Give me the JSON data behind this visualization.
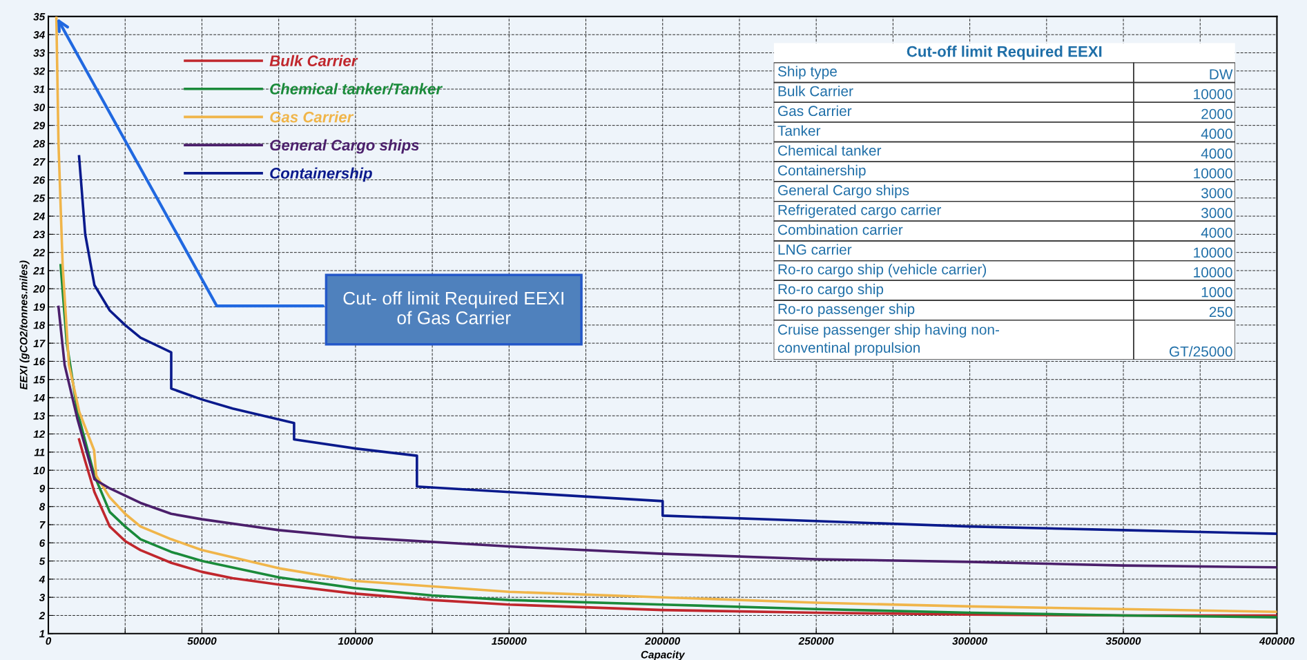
{
  "chart_data": [
    {
      "type": "line",
      "xlabel": "Capacity",
      "ylabel": "EEXI (gCO2/tonnes.miles)",
      "xlim": [
        0,
        400000
      ],
      "ylim": [
        1,
        35
      ],
      "xticks": [
        0,
        {
          "value": 25000,
          "label": null
        },
        50000,
        {
          "value": 75000,
          "label": null
        },
        100000,
        {
          "value": 125000,
          "label": null
        },
        150000,
        {
          "value": 175000,
          "label": null
        },
        200000,
        {
          "value": 225000,
          "label": null
        },
        250000,
        {
          "value": 275000,
          "label": null
        },
        300000,
        {
          "value": 325000,
          "label": null
        },
        350000,
        {
          "value": 375000,
          "label": null
        },
        400000
      ],
      "yticks": [
        1,
        2,
        3,
        4,
        5,
        6,
        7,
        8,
        9,
        10,
        11,
        12,
        13,
        14,
        15,
        16,
        17,
        18,
        19,
        20,
        21,
        22,
        23,
        24,
        25,
        26,
        27,
        28,
        29,
        30,
        31,
        32,
        33,
        34,
        35
      ],
      "grid": true,
      "legend": "top left",
      "line_style": "solid",
      "marker": "none",
      "series": [
        {
          "name": "Bulk Carrier",
          "color": "#c0272d",
          "x": [
            10000,
            12000,
            15000,
            20000,
            25000,
            30000,
            40000,
            50000,
            60000,
            75000,
            100000,
            125000,
            150000,
            200000,
            250000,
            300000,
            350000,
            400000
          ],
          "values": [
            11.7,
            10.5,
            8.8,
            6.9,
            6.1,
            5.6,
            4.9,
            4.4,
            4.05,
            3.7,
            3.2,
            2.85,
            2.6,
            2.3,
            2.15,
            2.05,
            2.0,
            2.0
          ]
        },
        {
          "name": "Chemical tanker/Tanker",
          "color": "#1a8a3a",
          "x": [
            4000,
            6000,
            9500,
            15000,
            20000,
            25000,
            30000,
            40000,
            50000,
            75000,
            100000,
            125000,
            150000,
            200000,
            250000,
            300000,
            350000,
            400000
          ],
          "values": [
            21.3,
            17,
            13.2,
            9.7,
            7.7,
            6.9,
            6.2,
            5.5,
            5.0,
            4.1,
            3.5,
            3.1,
            2.85,
            2.6,
            2.35,
            2.15,
            2.0,
            1.9
          ]
        },
        {
          "name": "Gas Carrier",
          "color": "#f0b54a",
          "x": [
            2600,
            3300,
            4650,
            6700,
            10100,
            14900,
            15600,
            20000,
            25000,
            30000,
            40000,
            50000,
            75000,
            100000,
            150000,
            200000,
            250000,
            300000,
            350000,
            400000
          ],
          "values": [
            35,
            28,
            21.3,
            15.8,
            13.2,
            11.1,
            9.7,
            8.5,
            7.6,
            6.9,
            6.2,
            5.6,
            4.6,
            3.9,
            3.3,
            3.0,
            2.7,
            2.5,
            2.35,
            2.2
          ]
        },
        {
          "name": "General Cargo ships",
          "color": "#4b1f6b",
          "x": [
            3300,
            5300,
            9500,
            15000,
            20000,
            30000,
            40000,
            50000,
            75000,
            100000,
            150000,
            200000,
            250000,
            300000,
            350000,
            400000
          ],
          "values": [
            19.0,
            15.8,
            12.8,
            9.5,
            9.0,
            8.2,
            7.6,
            7.3,
            6.7,
            6.3,
            5.8,
            5.4,
            5.1,
            4.95,
            4.75,
            4.65
          ]
        },
        {
          "name": "Containership",
          "color": "#0a1a8c",
          "x": [
            10000,
            12000,
            15000,
            20000,
            25000,
            30000,
            40000,
            40000,
            50000,
            60000,
            70000,
            80000,
            80000,
            100000,
            120000,
            120000,
            150000,
            200000,
            200000,
            250000,
            300000,
            350000,
            400000
          ],
          "values": [
            27.3,
            23,
            20.2,
            18.8,
            18.0,
            17.3,
            16.5,
            14.5,
            13.9,
            13.4,
            13.0,
            12.6,
            11.7,
            11.2,
            10.8,
            9.1,
            8.8,
            8.3,
            7.5,
            7.2,
            6.9,
            6.7,
            6.5
          ]
        }
      ],
      "annotations": [
        {
          "text": "Cut- off limit Required EEXI\nof Gas Carrier",
          "x": 2600,
          "y": 35
        }
      ]
    },
    {
      "type": "other",
      "title": "Cut-off limit Required EEXI",
      "y_categories": [
        "Ship type",
        "Bulk Carrier",
        "Gas Carrier",
        "Tanker",
        "Chemical tanker",
        "Containership",
        "General Cargo ships",
        "Refrigerated cargo carrier",
        "Combination carrier",
        "LNG carrier",
        "Ro-ro cargo ship (vehicle carrier)",
        "Ro-ro cargo ship",
        "Ro-ro passenger ship",
        "Cruise passenger ship having non-\nconventinal propulsion"
      ],
      "cell_labels": [
        [
          "DW"
        ],
        [
          "10000"
        ],
        [
          "2000"
        ],
        [
          "4000"
        ],
        [
          "4000"
        ],
        [
          "10000"
        ],
        [
          "3000"
        ],
        [
          "3000"
        ],
        [
          "4000"
        ],
        [
          "10000"
        ],
        [
          "10000"
        ],
        [
          "1000"
        ],
        [
          "250"
        ],
        [
          "GT/25000"
        ]
      ]
    }
  ]
}
